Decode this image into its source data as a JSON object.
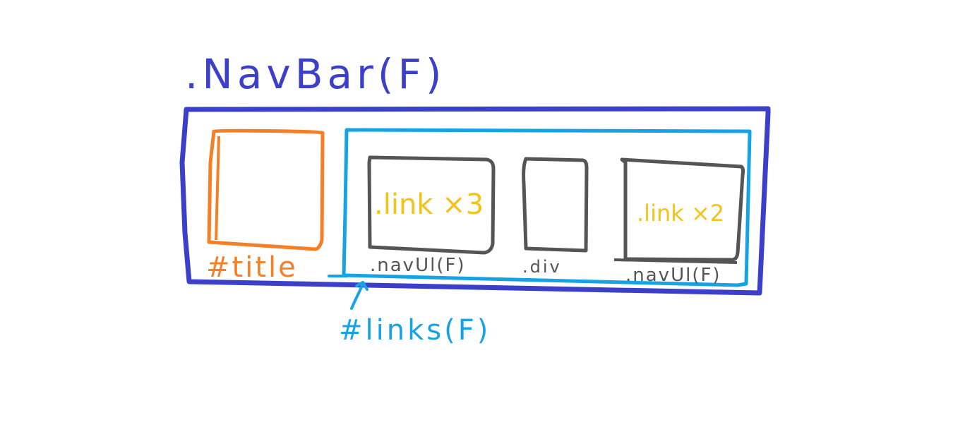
{
  "colors": {
    "navbar": "#3b3fc9",
    "links": "#16a3e6",
    "title": "#f57f24",
    "box": "#555555",
    "label": "#f5c21a"
  },
  "navbar": {
    "label": ".NavBar(F)"
  },
  "title_box": {
    "label": "#title"
  },
  "links_container": {
    "label": "#links(F)"
  },
  "nav_ul_1": {
    "label": ".navUl(F)",
    "inner": ".link ×3"
  },
  "div_box": {
    "label": ".div"
  },
  "nav_ul_2": {
    "label": ".navUl(F)",
    "inner": ".link ×2"
  }
}
